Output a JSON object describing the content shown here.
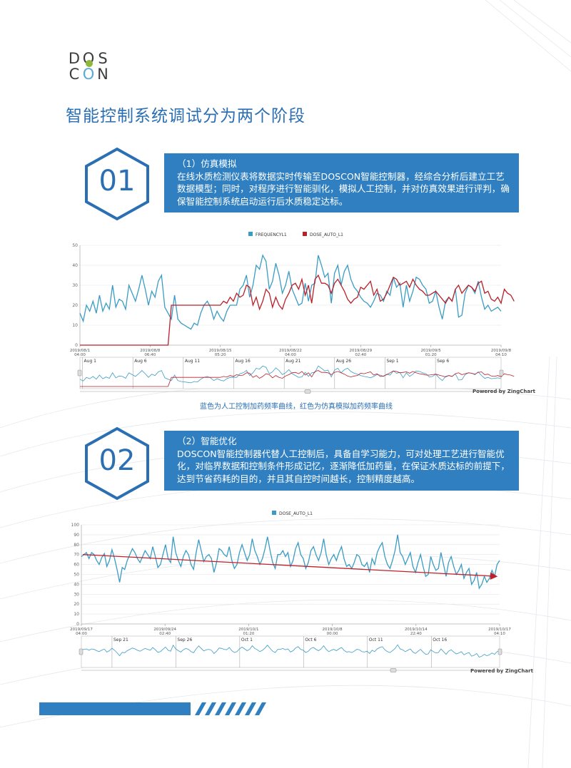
{
  "logo": {
    "letters": [
      "D",
      "O",
      "S",
      "C",
      "O",
      "N"
    ],
    "dot_colors": [
      "#8fb83a",
      "#5aa8d8",
      "#2a6fb3"
    ]
  },
  "page_title": "智能控制系统调试分为两个阶段",
  "section1": {
    "number": "01",
    "title": "（1）仿真模拟",
    "body": "在线水质检测仪表将数据实时传输至DOSCON智能控制器，经综合分析后建立工艺数据模型；同时，对程序进行智能驯化，模拟人工控制，并对仿真效果进行评判，确保智能控制系统启动运行后水质稳定达标。"
  },
  "section2": {
    "number": "02",
    "title": "（2）智能优化",
    "body": "DOSCON智能控制器代替人工控制后，具备自学习能力，可对处理工艺进行智能优化，对临界数据和控制条件形成记忆，逐渐降低加药量，在保证水质达标的前提下，达到节省药耗的目的，并且其自控时间越长，控制精度越高。"
  },
  "caption": "蓝色为人工控制加药频率曲线，红色为仿真模拟加药频率曲线",
  "powered_by": "Powered by ZingChart",
  "colors": {
    "accent": "#2f7fc1",
    "blue_series": "#3a9cc4",
    "red_series": "#b8202a"
  },
  "chart_data": [
    {
      "type": "line",
      "legend": [
        "FREQUENCYL1",
        "DOSE_AUTO_L1"
      ],
      "ylim": [
        0,
        50
      ],
      "yticks": [
        "0",
        "10",
        "20",
        "30",
        "40",
        "50"
      ],
      "xticks": [
        {
          "date": "2019/08/1",
          "time": "04:00"
        },
        {
          "date": "2019/08/8",
          "time": "06:40"
        },
        {
          "date": "2019/08/15",
          "time": "05:20"
        },
        {
          "date": "2019/08/22",
          "time": "04:00"
        },
        {
          "date": "2019/08/29",
          "time": "02:40"
        },
        {
          "date": "2019/09/5",
          "time": "01:20"
        },
        {
          "date": "2019/09/8",
          "time": "04:10"
        }
      ],
      "navigator_labels": [
        "Aug 1",
        "Aug 6",
        "Aug 11",
        "Aug 16",
        "Aug 21",
        "Aug 26",
        "Sep 1",
        "Sep 6"
      ],
      "series": [
        {
          "name": "FREQUENCYL1",
          "color": "#3a9cc4",
          "values": [
            16,
            12,
            20,
            17,
            22,
            16,
            25,
            17,
            21,
            18,
            30,
            19,
            23,
            22,
            18,
            30,
            26,
            22,
            28,
            35,
            28,
            20,
            27,
            24,
            32,
            35,
            19,
            16,
            13,
            25,
            13,
            11,
            10,
            9,
            8,
            11,
            10,
            16,
            20,
            22,
            19,
            13,
            17,
            14,
            12,
            17,
            20,
            20,
            20,
            28,
            30,
            35,
            24,
            30,
            40,
            38,
            45,
            42,
            28,
            32,
            41,
            35,
            26,
            30,
            37,
            28,
            24,
            20,
            21,
            31,
            22,
            30,
            31,
            45,
            40,
            34,
            36,
            21,
            36,
            40,
            30,
            37,
            40,
            33,
            29,
            27,
            24,
            22,
            21,
            19,
            22,
            26,
            25,
            22,
            27,
            25,
            34,
            29,
            31,
            19,
            30,
            22,
            27,
            34,
            33,
            30,
            28,
            21,
            22,
            27,
            19,
            13,
            22,
            24,
            22,
            28,
            14,
            15,
            26,
            30,
            29,
            26,
            32,
            24,
            18,
            20,
            17,
            18,
            19,
            17
          ]
        },
        {
          "name": "DOSE_AUTO_L1",
          "color": "#b8202a",
          "values": [
            0,
            0,
            0,
            0,
            0,
            0,
            0,
            0,
            0,
            0,
            0,
            0,
            0,
            0,
            0,
            0,
            0,
            0,
            0,
            0,
            0,
            0,
            0,
            0,
            0,
            0,
            0,
            0,
            20,
            20,
            20,
            20,
            20,
            20,
            20,
            20,
            20,
            20,
            20,
            20,
            20,
            20,
            20,
            20,
            22,
            21,
            24,
            22,
            26,
            24,
            25,
            30,
            29,
            20,
            24,
            18,
            22,
            28,
            26,
            19,
            24,
            20,
            18,
            23,
            26,
            30,
            31,
            28,
            33,
            25,
            30,
            21,
            33,
            35,
            31,
            31,
            30,
            26,
            31,
            33,
            30,
            27,
            23,
            21,
            23,
            24,
            29,
            28,
            30,
            32,
            25,
            28,
            22,
            23,
            26,
            30,
            34,
            33,
            30,
            31,
            32,
            29,
            33,
            30,
            28,
            27,
            25,
            25,
            26,
            27,
            25,
            23,
            21,
            24,
            22,
            28,
            30,
            26,
            28,
            30,
            29,
            27,
            31,
            32,
            26,
            27,
            23,
            22,
            24,
            21,
            28,
            26,
            25,
            22
          ]
        }
      ]
    },
    {
      "type": "line",
      "legend": [
        "DOSE_AUTO_L1"
      ],
      "ylim": [
        0,
        100
      ],
      "yticks": [
        "0",
        "10",
        "20",
        "30",
        "40",
        "50",
        "60",
        "70",
        "80",
        "90",
        "100"
      ],
      "xticks": [
        {
          "date": "2019/09/17",
          "time": "04:00"
        },
        {
          "date": "2019/09/24",
          "time": "02:40"
        },
        {
          "date": "2019/10/1",
          "time": "01:20"
        },
        {
          "date": "2019/10/8",
          "time": "00:00"
        },
        {
          "date": "2019/10/14",
          "time": "22:40"
        },
        {
          "date": "2019/10/17",
          "time": "04:10"
        }
      ],
      "navigator_labels": [
        "Sep 21",
        "Sep 26",
        "Oct 1",
        "Oct 6",
        "Oct 11",
        "Oct 16"
      ],
      "trend": {
        "from": 70,
        "to": 48
      },
      "series": [
        {
          "name": "DOSE_AUTO_L1",
          "color": "#3a9cc4",
          "values": [
            68,
            70,
            72,
            66,
            72,
            70,
            64,
            60,
            67,
            71,
            58,
            64,
            75,
            66,
            55,
            42,
            57,
            55,
            64,
            70,
            76,
            72,
            66,
            62,
            68,
            74,
            70,
            66,
            78,
            68,
            57,
            60,
            70,
            80,
            66,
            62,
            88,
            72,
            64,
            58,
            68,
            74,
            70,
            60,
            55,
            72,
            85,
            74,
            63,
            68,
            70,
            66,
            52,
            62,
            76,
            74,
            70,
            68,
            78,
            64,
            56,
            60,
            72,
            80,
            72,
            64,
            70,
            86,
            74,
            68,
            60,
            66,
            76,
            88,
            74,
            62,
            56,
            70,
            70,
            74,
            68,
            72,
            58,
            64,
            76,
            82,
            70,
            66,
            56,
            62,
            74,
            78,
            70,
            64,
            72,
            86,
            70,
            60,
            66,
            70,
            64,
            72,
            78,
            66,
            58,
            60,
            56,
            62,
            70,
            68,
            60,
            58,
            62,
            52,
            66,
            60,
            72,
            78,
            82,
            68,
            60,
            56,
            64,
            74,
            90,
            72,
            68,
            60,
            66,
            72,
            58,
            52,
            62,
            70,
            58,
            48,
            50,
            68,
            60,
            54,
            56,
            72,
            60,
            48,
            62,
            68,
            58,
            50,
            54,
            60,
            46,
            52,
            56,
            40,
            44,
            52,
            36,
            40,
            48,
            42,
            46,
            54,
            48,
            60,
            64
          ]
        }
      ]
    }
  ]
}
